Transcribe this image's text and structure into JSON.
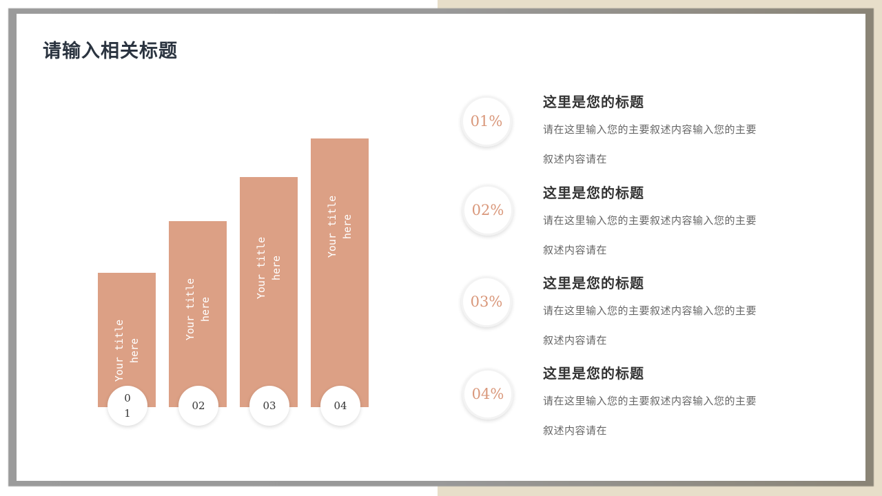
{
  "title": "请输入相关标题",
  "accent_color": "#dca085",
  "bars": [
    {
      "label_line1": "Your title",
      "label_line2": "here",
      "number": "0\n1",
      "value_rank": 1
    },
    {
      "label_line1": "Your title",
      "label_line2": "here",
      "number": "02",
      "value_rank": 2
    },
    {
      "label_line1": "Your title",
      "label_line2": "here",
      "number": "03",
      "value_rank": 3
    },
    {
      "label_line1": "Your title",
      "label_line2": "here",
      "number": "04",
      "value_rank": 4
    }
  ],
  "items": [
    {
      "percent": "01%",
      "title": "这里是您的标题",
      "desc": "请在这里输入您的主要叙述内容输入您的主要叙述内容请在"
    },
    {
      "percent": "02%",
      "title": "这里是您的标题",
      "desc": "请在这里输入您的主要叙述内容输入您的主要叙述内容请在"
    },
    {
      "percent": "03%",
      "title": "这里是您的标题",
      "desc": "请在这里输入您的主要叙述内容输入您的主要叙述内容请在"
    },
    {
      "percent": "04%",
      "title": "这里是您的标题",
      "desc": "请在这里输入您的主要叙述内容输入您的主要叙述内容请在"
    }
  ]
}
